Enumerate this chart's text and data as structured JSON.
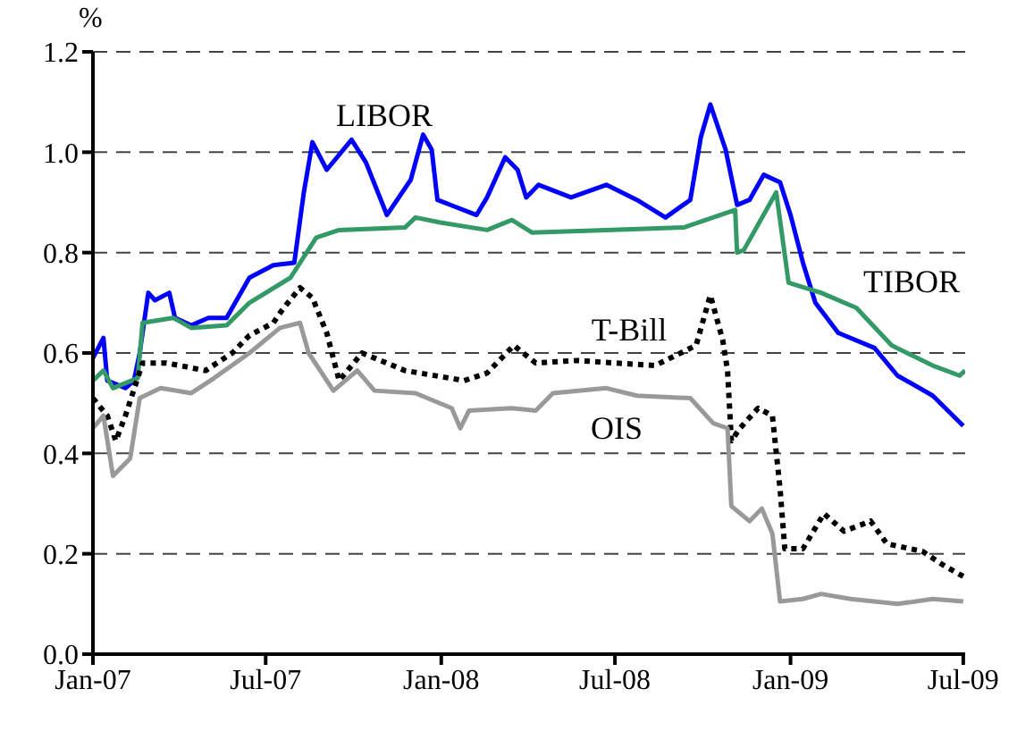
{
  "chart_data": {
    "type": "line",
    "ylabel": "%",
    "grid": "y",
    "xlim": [
      "2007-01-01",
      "2009-07-03"
    ],
    "xticks": [
      {
        "value": "2007-01-01",
        "label": "Jan-07"
      },
      {
        "value": "2007-07-01",
        "label": "Jul-07"
      },
      {
        "value": "2008-01-01",
        "label": "Jan-08"
      },
      {
        "value": "2008-07-01",
        "label": "Jul-08"
      },
      {
        "value": "2009-01-01",
        "label": "Jan-09"
      },
      {
        "value": "2009-07-01",
        "label": "Jul-09"
      }
    ],
    "ylim": [
      0,
      1.2
    ],
    "yticks": [
      {
        "value": 0,
        "label": "0.0"
      },
      {
        "value": 0.2,
        "label": "0.2"
      },
      {
        "value": 0.4,
        "label": "0.4"
      },
      {
        "value": 0.6,
        "label": "0.6"
      },
      {
        "value": 0.8,
        "label": "0.8"
      },
      {
        "value": 1,
        "label": "1.0"
      },
      {
        "value": 1.2,
        "label": "1.2"
      }
    ],
    "series": [
      {
        "name": "LIBOR",
        "color": "#0000ff",
        "line_style": "solid",
        "x": [
          "2007-01-01",
          "2007-01-12",
          "2007-01-16",
          "2007-02-04",
          "2007-02-13",
          "2007-02-19",
          "2007-02-28",
          "2007-03-07",
          "2007-03-22",
          "2007-03-28",
          "2007-04-14",
          "2007-05-02",
          "2007-05-21",
          "2007-06-14",
          "2007-07-09",
          "2007-07-31",
          "2007-08-10",
          "2007-08-19",
          "2007-09-03",
          "2007-09-29",
          "2007-10-14",
          "2007-11-05",
          "2007-11-30",
          "2007-12-13",
          "2007-12-22",
          "2007-12-28",
          "2008-02-07",
          "2008-02-18",
          "2008-03-08",
          "2008-03-21",
          "2008-03-30",
          "2008-04-12",
          "2008-05-16",
          "2008-06-22",
          "2008-07-24",
          "2008-08-23",
          "2008-09-18",
          "2008-09-29",
          "2008-10-09",
          "2008-10-25",
          "2008-11-06",
          "2008-11-19",
          "2008-12-04",
          "2008-12-21",
          "2009-01-01",
          "2009-01-14",
          "2009-01-27",
          "2009-02-20",
          "2009-03-30",
          "2009-04-23",
          "2009-05-30",
          "2009-07-01"
        ],
        "values": [
          0.59,
          0.63,
          0.545,
          0.53,
          0.545,
          0.6,
          0.72,
          0.705,
          0.72,
          0.67,
          0.655,
          0.67,
          0.67,
          0.75,
          0.775,
          0.78,
          0.92,
          1.02,
          0.965,
          1.025,
          0.98,
          0.875,
          0.945,
          1.035,
          1.005,
          0.905,
          0.875,
          0.91,
          0.99,
          0.965,
          0.91,
          0.935,
          0.91,
          0.935,
          0.905,
          0.87,
          0.905,
          1.03,
          1.095,
          1.005,
          0.895,
          0.905,
          0.955,
          0.94,
          0.875,
          0.78,
          0.7,
          0.64,
          0.61,
          0.555,
          0.515,
          0.455
        ]
      },
      {
        "name": "TIBOR",
        "color": "#339966",
        "line_style": "solid",
        "x": [
          "2007-01-01",
          "2007-01-12",
          "2007-01-22",
          "2007-02-17",
          "2007-02-22",
          "2007-03-26",
          "2007-04-14",
          "2007-05-21",
          "2007-06-14",
          "2007-07-27",
          "2007-08-23",
          "2007-09-16",
          "2007-11-24",
          "2007-12-05",
          "2007-12-31",
          "2008-02-18",
          "2008-03-15",
          "2008-04-05",
          "2008-06-22",
          "2008-09-11",
          "2008-11-04",
          "2008-11-06",
          "2008-11-13",
          "2008-12-17",
          "2008-12-30",
          "2009-02-02",
          "2009-03-11",
          "2009-04-17",
          "2009-05-30",
          "2009-06-27",
          "2009-07-03"
        ],
        "values": [
          0.545,
          0.565,
          0.53,
          0.55,
          0.66,
          0.67,
          0.65,
          0.655,
          0.7,
          0.75,
          0.83,
          0.845,
          0.85,
          0.87,
          0.86,
          0.845,
          0.865,
          0.84,
          0.845,
          0.85,
          0.885,
          0.8,
          0.805,
          0.92,
          0.74,
          0.72,
          0.69,
          0.615,
          0.575,
          0.555,
          0.565
        ]
      },
      {
        "name": "T-Bill",
        "color": "#000000",
        "line_style": "dotted",
        "x": [
          "2007-01-01",
          "2007-01-16",
          "2007-01-25",
          "2007-02-04",
          "2007-02-22",
          "2007-03-19",
          "2007-04-29",
          "2007-05-27",
          "2007-06-14",
          "2007-07-09",
          "2007-07-18",
          "2007-08-06",
          "2007-08-19",
          "2007-09-03",
          "2007-09-16",
          "2007-10-10",
          "2007-11-24",
          "2008-01-25",
          "2008-02-18",
          "2008-03-17",
          "2008-04-09",
          "2008-05-22",
          "2008-08-12",
          "2008-09-24",
          "2008-10-09",
          "2008-10-22",
          "2008-10-27",
          "2008-10-31",
          "2008-11-09",
          "2008-11-28",
          "2008-12-13",
          "2008-12-21",
          "2008-12-26",
          "2009-01-14",
          "2009-02-05",
          "2009-02-26",
          "2009-03-26",
          "2009-04-12",
          "2009-05-19",
          "2009-06-12",
          "2009-07-01"
        ],
        "values": [
          0.51,
          0.475,
          0.425,
          0.475,
          0.58,
          0.58,
          0.565,
          0.6,
          0.635,
          0.66,
          0.685,
          0.73,
          0.71,
          0.64,
          0.545,
          0.6,
          0.565,
          0.545,
          0.56,
          0.615,
          0.58,
          0.585,
          0.575,
          0.615,
          0.715,
          0.625,
          0.565,
          0.425,
          0.45,
          0.49,
          0.475,
          0.33,
          0.21,
          0.21,
          0.28,
          0.245,
          0.265,
          0.22,
          0.205,
          0.175,
          0.155
        ]
      },
      {
        "name": "OIS",
        "color": "#999999",
        "line_style": "solid",
        "x": [
          "2007-01-01",
          "2007-01-12",
          "2007-01-22",
          "2007-02-09",
          "2007-02-19",
          "2007-03-13",
          "2007-04-14",
          "2007-05-08",
          "2007-06-14",
          "2007-07-16",
          "2007-08-06",
          "2007-08-15",
          "2007-09-10",
          "2007-10-05",
          "2007-10-23",
          "2007-12-05",
          "2008-01-12",
          "2008-01-21",
          "2008-01-30",
          "2008-03-15",
          "2008-04-09",
          "2008-04-27",
          "2008-06-22",
          "2008-07-24",
          "2008-09-18",
          "2008-10-12",
          "2008-10-27",
          "2008-10-31",
          "2008-11-19",
          "2008-12-02",
          "2008-12-13",
          "2008-12-21",
          "2009-01-14",
          "2009-02-02",
          "2009-03-05",
          "2009-04-23",
          "2009-05-30",
          "2009-07-01"
        ],
        "values": [
          0.45,
          0.475,
          0.355,
          0.39,
          0.51,
          0.53,
          0.52,
          0.55,
          0.6,
          0.65,
          0.66,
          0.6,
          0.525,
          0.565,
          0.525,
          0.52,
          0.49,
          0.45,
          0.485,
          0.49,
          0.485,
          0.52,
          0.53,
          0.515,
          0.51,
          0.46,
          0.45,
          0.295,
          0.265,
          0.29,
          0.24,
          0.105,
          0.11,
          0.12,
          0.11,
          0.1,
          0.11,
          0.105
        ]
      }
    ]
  }
}
